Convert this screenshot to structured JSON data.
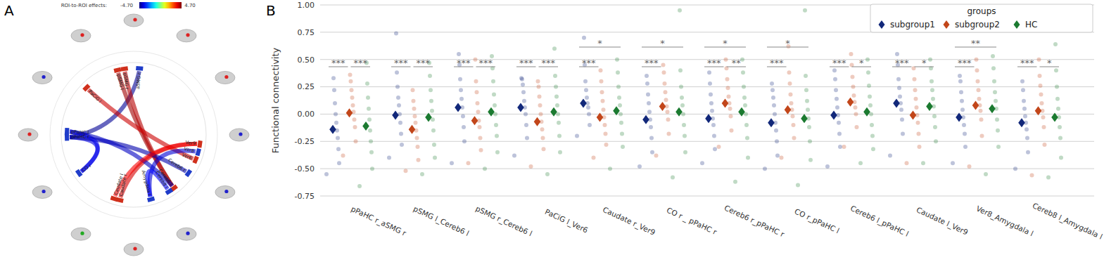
{
  "panel_labels": [
    "A",
    "B"
  ],
  "connectome": {
    "colorbar": {
      "label": "ROI-to-ROI effects:",
      "range": [
        -4.7,
        4.7
      ],
      "min_label": "-4.70",
      "max_label": "4.70"
    },
    "nodes": [
      {
        "label": "aSMG r"
      },
      {
        "label": "pSMG l"
      },
      {
        "label": "pSMG r"
      },
      {
        "label": "PaCiG l"
      },
      {
        "label": "pPaHC r"
      },
      {
        "label": "pPaHC l"
      },
      {
        "label": "CO r"
      },
      {
        "label": "Caudate r"
      },
      {
        "label": "Caudate l"
      },
      {
        "label": "Amygdala l"
      },
      {
        "label": "Cereb6 l"
      },
      {
        "label": "Cereb8 l"
      },
      {
        "label": "Cereb6 r"
      },
      {
        "label": "Ver6"
      },
      {
        "label": "Ver8"
      },
      {
        "label": "Ver9"
      }
    ],
    "edges": [
      {
        "source": 4,
        "target": 0,
        "t": -4.5
      },
      {
        "source": 1,
        "target": 10,
        "t": 4.4
      },
      {
        "source": 2,
        "target": 10,
        "t": 4.2
      },
      {
        "source": 3,
        "target": 13,
        "t": 4.0
      },
      {
        "source": 7,
        "target": 15,
        "t": 3.9
      },
      {
        "source": 6,
        "target": 4,
        "t": -3.8
      },
      {
        "source": 12,
        "target": 4,
        "t": -4.3
      },
      {
        "source": 6,
        "target": 5,
        "t": -3.7
      },
      {
        "source": 10,
        "target": 5,
        "t": -4.1
      },
      {
        "source": 8,
        "target": 15,
        "t": 3.6
      },
      {
        "source": 14,
        "target": 9,
        "t": -3.9
      },
      {
        "source": 11,
        "target": 9,
        "t": -3.5
      }
    ]
  },
  "chart_data": {
    "type": "strip",
    "y_label": "Functional connectivity",
    "categories": [
      "pPaHC r_aSMG r",
      "pSMG l_Cereb6 l",
      "pSMG r_Cereb6 l",
      "PaCiG l_Ver6",
      "Caudate r_Ver9",
      "CO r _ pPaHC r",
      "Cereb6 r_pPaHC r",
      "CO r_pPaHC l",
      "Cereb6 l_pPaHC l",
      "Caudate l_Ver9",
      "Ver8_Amygdala l",
      "Cereb8 l_Amygdala l"
    ],
    "series": [
      {
        "name": "subgroup1",
        "color": "#12287a",
        "values": [
          -0.14,
          -0.01,
          0.06,
          0.06,
          0.1,
          -0.05,
          -0.04,
          -0.08,
          -0.01,
          0.1,
          -0.03,
          -0.08
        ],
        "points": [
          [
            -0.55,
            -0.45,
            -0.32,
            -0.22,
            -0.15,
            -0.08,
            0.0,
            0.1,
            0.22,
            0.33
          ],
          [
            -0.4,
            -0.28,
            -0.18,
            -0.08,
            0.0,
            0.08,
            0.15,
            0.25,
            0.38,
            0.74
          ],
          [
            -0.45,
            -0.25,
            -0.12,
            -0.02,
            0.06,
            0.14,
            0.22,
            0.32,
            0.45,
            0.55
          ],
          [
            -0.38,
            -0.22,
            -0.1,
            0.0,
            0.06,
            0.12,
            0.2,
            0.27,
            0.32,
            0.33
          ],
          [
            -0.2,
            -0.1,
            0.0,
            0.06,
            0.1,
            0.15,
            0.22,
            0.3,
            0.45,
            0.7
          ],
          [
            -0.48,
            -0.35,
            -0.22,
            -0.12,
            -0.05,
            0.02,
            0.1,
            0.18,
            0.28,
            0.35
          ],
          [
            -0.45,
            -0.32,
            -0.2,
            -0.1,
            -0.04,
            0.03,
            0.1,
            0.18,
            0.28,
            0.38
          ],
          [
            -0.5,
            -0.38,
            -0.25,
            -0.15,
            -0.08,
            0.0,
            0.08,
            0.15,
            0.22,
            0.28
          ],
          [
            -0.48,
            -0.3,
            -0.18,
            -0.08,
            -0.01,
            0.06,
            0.14,
            0.22,
            0.32,
            0.4
          ],
          [
            -0.38,
            -0.18,
            -0.05,
            0.04,
            0.1,
            0.16,
            0.24,
            0.32,
            0.45,
            0.55
          ],
          [
            -0.45,
            -0.3,
            -0.18,
            -0.1,
            -0.03,
            0.04,
            0.12,
            0.2,
            0.3,
            0.35
          ],
          [
            -0.5,
            -0.35,
            -0.22,
            -0.14,
            -0.08,
            -0.02,
            0.05,
            0.12,
            0.22,
            0.3
          ]
        ]
      },
      {
        "name": "subgroup2",
        "color": "#c2461a",
        "values": [
          0.01,
          -0.14,
          -0.06,
          -0.07,
          -0.03,
          0.07,
          0.1,
          0.04,
          0.11,
          -0.01,
          0.08,
          0.03
        ],
        "points": [
          [
            -0.38,
            -0.25,
            -0.12,
            -0.05,
            0.02,
            0.08,
            0.15,
            0.22,
            0.3,
            0.36
          ],
          [
            -0.52,
            -0.42,
            -0.3,
            -0.22,
            -0.15,
            -0.08,
            -0.02,
            0.05,
            0.12,
            0.22
          ],
          [
            -0.45,
            -0.33,
            -0.22,
            -0.12,
            -0.06,
            0.02,
            0.1,
            0.2,
            0.3,
            0.5
          ],
          [
            -0.48,
            -0.32,
            -0.22,
            -0.14,
            -0.07,
            0.0,
            0.08,
            0.16,
            0.25,
            0.3
          ],
          [
            -0.4,
            -0.28,
            -0.18,
            -0.1,
            -0.03,
            0.04,
            0.12,
            0.2,
            0.3,
            0.4
          ],
          [
            -0.38,
            -0.18,
            -0.05,
            0.02,
            0.07,
            0.13,
            0.2,
            0.28,
            0.38,
            0.45
          ],
          [
            -0.3,
            -0.15,
            -0.02,
            0.05,
            0.1,
            0.16,
            0.24,
            0.32,
            0.42,
            0.5
          ],
          [
            -0.4,
            -0.22,
            -0.1,
            -0.02,
            0.04,
            0.1,
            0.18,
            0.28,
            0.38,
            0.62
          ],
          [
            -0.3,
            -0.12,
            0.0,
            0.06,
            0.11,
            0.17,
            0.25,
            0.34,
            0.45,
            0.55
          ],
          [
            -0.45,
            -0.3,
            -0.18,
            -0.08,
            -0.01,
            0.06,
            0.14,
            0.22,
            0.32,
            0.42
          ],
          [
            -0.48,
            -0.2,
            -0.05,
            0.03,
            0.08,
            0.14,
            0.22,
            0.3,
            0.4,
            0.5
          ],
          [
            -0.56,
            -0.28,
            -0.12,
            -0.03,
            0.03,
            0.1,
            0.18,
            0.26,
            0.35,
            0.5
          ]
        ]
      },
      {
        "name": "HC",
        "color": "#1b7a30",
        "values": [
          -0.11,
          -0.03,
          0.02,
          0.02,
          0.03,
          0.02,
          0.02,
          -0.04,
          0.02,
          0.07,
          0.05,
          -0.03
        ],
        "points": [
          [
            -0.66,
            -0.5,
            -0.35,
            -0.25,
            -0.15,
            -0.05,
            0.05,
            0.15,
            0.28,
            0.47
          ],
          [
            -0.55,
            -0.4,
            -0.28,
            -0.15,
            -0.05,
            0.03,
            0.12,
            0.22,
            0.35,
            0.47
          ],
          [
            -0.5,
            -0.35,
            -0.2,
            -0.1,
            0.0,
            0.08,
            0.18,
            0.3,
            0.42,
            0.53
          ],
          [
            -0.55,
            -0.35,
            -0.2,
            -0.08,
            0.0,
            0.08,
            0.16,
            0.25,
            0.35,
            0.6
          ],
          [
            -0.5,
            -0.3,
            -0.18,
            -0.08,
            0.0,
            0.08,
            0.15,
            0.25,
            0.38,
            0.5
          ],
          [
            -0.58,
            -0.35,
            -0.2,
            -0.1,
            0.0,
            0.08,
            0.15,
            0.25,
            0.4,
            0.95
          ],
          [
            -0.62,
            -0.4,
            -0.22,
            -0.1,
            0.0,
            0.08,
            0.15,
            0.25,
            0.38,
            0.5
          ],
          [
            -0.65,
            -0.42,
            -0.25,
            -0.12,
            -0.04,
            0.04,
            0.12,
            0.22,
            0.35,
            0.95
          ],
          [
            -0.45,
            -0.32,
            -0.2,
            -0.1,
            0.0,
            0.08,
            0.16,
            0.26,
            0.38,
            0.5
          ],
          [
            -0.45,
            -0.25,
            -0.12,
            -0.02,
            0.07,
            0.14,
            0.22,
            0.3,
            0.42,
            0.5
          ],
          [
            -0.55,
            -0.3,
            -0.15,
            -0.05,
            0.05,
            0.12,
            0.2,
            0.3,
            0.42,
            0.53
          ],
          [
            -0.58,
            -0.4,
            -0.22,
            -0.12,
            -0.03,
            0.05,
            0.14,
            0.25,
            0.4,
            0.64
          ]
        ]
      }
    ],
    "ylim": [
      -0.75,
      1.0
    ],
    "yticks": [
      -0.75,
      {
        "value": -0.5,
        "label": "-0.50"
      },
      -0.25,
      {
        "value": 0,
        "label": "0.00"
      },
      0.25,
      {
        "value": 0.5,
        "label": "0.50"
      },
      0.75,
      {
        "value": 1,
        "label": "1.00"
      }
    ],
    "grid": true,
    "legend": "upper right",
    "legend_title": "groups",
    "marker": "diamond",
    "significance": [
      {
        "category": 0,
        "groups": [
          0,
          1
        ],
        "label": "***"
      },
      {
        "category": 0,
        "groups": [
          1,
          2
        ],
        "label": "***"
      },
      {
        "category": 1,
        "groups": [
          0,
          1
        ],
        "label": "***"
      },
      {
        "category": 1,
        "groups": [
          1,
          2
        ],
        "label": "***"
      },
      {
        "category": 2,
        "groups": [
          0,
          1
        ],
        "label": "***"
      },
      {
        "category": 2,
        "groups": [
          1,
          2
        ],
        "label": "***"
      },
      {
        "category": 3,
        "groups": [
          0,
          1
        ],
        "label": "***"
      },
      {
        "category": 3,
        "groups": [
          1,
          2
        ],
        "label": "***"
      },
      {
        "category": 4,
        "groups": [
          0,
          1
        ],
        "label": "***"
      },
      {
        "category": 4,
        "groups": [
          0,
          2
        ],
        "label": "*"
      },
      {
        "category": 5,
        "groups": [
          0,
          1
        ],
        "label": "***"
      },
      {
        "category": 5,
        "groups": [
          0,
          2
        ],
        "label": "*"
      },
      {
        "category": 6,
        "groups": [
          0,
          1
        ],
        "label": "***"
      },
      {
        "category": 6,
        "groups": [
          1,
          2
        ],
        "label": "**"
      },
      {
        "category": 6,
        "groups": [
          0,
          2
        ],
        "label": "*"
      },
      {
        "category": 7,
        "groups": [
          0,
          1
        ],
        "label": "***"
      },
      {
        "category": 7,
        "groups": [
          0,
          2
        ],
        "label": "*"
      },
      {
        "category": 8,
        "groups": [
          0,
          1
        ],
        "label": "***"
      },
      {
        "category": 8,
        "groups": [
          1,
          2
        ],
        "label": "*"
      },
      {
        "category": 9,
        "groups": [
          0,
          1
        ],
        "label": "***"
      },
      {
        "category": 9,
        "groups": [
          1,
          2
        ],
        "label": "*"
      },
      {
        "category": 10,
        "groups": [
          0,
          1
        ],
        "label": "***"
      },
      {
        "category": 10,
        "groups": [
          0,
          2
        ],
        "label": "**"
      },
      {
        "category": 11,
        "groups": [
          0,
          1
        ],
        "label": "***"
      },
      {
        "category": 11,
        "groups": [
          1,
          2
        ],
        "label": "*"
      }
    ]
  }
}
